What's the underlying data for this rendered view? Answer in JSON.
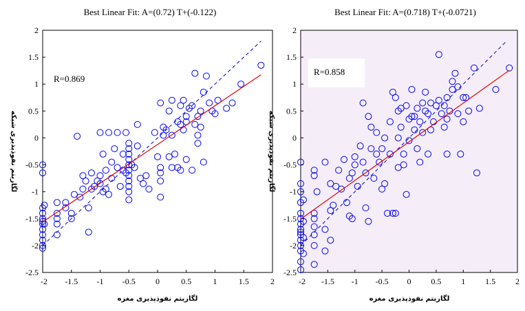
{
  "chart_data": [
    {
      "type": "scatter",
      "title": "Best Linear Fit: A=(0.72) T+(-0.122)",
      "r_label": "R=0.869",
      "xlabel": "لگاریتم نفوذپذیری مغزه",
      "ylabel": "لگاریتم نفوذپذیری شبکه",
      "xlim": [
        -2,
        2
      ],
      "ylim": [
        -2.5,
        2
      ],
      "x_ticks": [
        "-2",
        "-1.5",
        "-1",
        "-0.5",
        "0",
        "0.5",
        "1",
        "1.5",
        "2"
      ],
      "y_ticks": [
        "-2.5",
        "-2",
        "-1.5",
        "-1",
        "-0.5",
        "0",
        "0.5",
        "1",
        "1.5",
        "2"
      ],
      "background": "#ffffff",
      "marker_color": "#0000ff",
      "fit_color": "#e00000",
      "identity_color": "#0000cc",
      "fit_line": {
        "slope": 0.72,
        "intercept": -0.122
      },
      "identity_line": {
        "slope": 1,
        "intercept": 0
      },
      "points": [
        [
          -2,
          -0.5
        ],
        [
          -2,
          -0.65
        ],
        [
          -2,
          -1.3
        ],
        [
          -2,
          -1.4
        ],
        [
          -2,
          -1.5
        ],
        [
          -2,
          -1.55
        ],
        [
          -2,
          -1.6
        ],
        [
          -2,
          -1.7
        ],
        [
          -2,
          -1.8
        ],
        [
          -2,
          -1.9
        ],
        [
          -2,
          -2.0
        ],
        [
          -2,
          -2.05
        ],
        [
          -1.97,
          -1.6
        ],
        [
          -1.97,
          -1.25
        ],
        [
          -1.75,
          -1.2
        ],
        [
          -1.75,
          -1.4
        ],
        [
          -1.75,
          -1.5
        ],
        [
          -1.75,
          -1.6
        ],
        [
          -1.75,
          -1.8
        ],
        [
          -1.6,
          -1.2
        ],
        [
          -1.6,
          -1.3
        ],
        [
          -1.5,
          -1.4
        ],
        [
          -1.5,
          -1.5
        ],
        [
          -1.45,
          -1.05
        ],
        [
          -1.4,
          0.03
        ],
        [
          -1.35,
          -1.1
        ],
        [
          -1.3,
          -0.7
        ],
        [
          -1.3,
          -0.95
        ],
        [
          -1.25,
          -0.8
        ],
        [
          -1.2,
          -1.3
        ],
        [
          -1.2,
          -1.75
        ],
        [
          -1.15,
          -0.95
        ],
        [
          -1.15,
          -0.65
        ],
        [
          -1.1,
          -0.9
        ],
        [
          -1.05,
          -0.8
        ],
        [
          -1.0,
          0.1
        ],
        [
          -1.0,
          -0.7
        ],
        [
          -1.0,
          -0.85
        ],
        [
          -0.95,
          -1.0
        ],
        [
          -0.95,
          -0.3
        ],
        [
          -0.9,
          -0.95
        ],
        [
          -0.9,
          -0.6
        ],
        [
          -0.85,
          -1.05
        ],
        [
          -0.85,
          0.1
        ],
        [
          -0.8,
          -0.45
        ],
        [
          -0.8,
          -0.75
        ],
        [
          -0.75,
          -0.2
        ],
        [
          -0.7,
          0.1
        ],
        [
          -0.7,
          -0.55
        ],
        [
          -0.65,
          -0.9
        ],
        [
          -0.6,
          -0.3
        ],
        [
          -0.6,
          -0.6
        ],
        [
          -0.55,
          0.1
        ],
        [
          -0.55,
          -0.65
        ],
        [
          -0.5,
          -0.1
        ],
        [
          -0.5,
          -0.2
        ],
        [
          -0.5,
          -0.3
        ],
        [
          -0.5,
          -0.4
        ],
        [
          -0.5,
          -0.5
        ],
        [
          -0.5,
          -0.6
        ],
        [
          -0.5,
          -0.7
        ],
        [
          -0.5,
          -0.8
        ],
        [
          -0.5,
          -0.9
        ],
        [
          -0.5,
          -1.0
        ],
        [
          -0.5,
          -1.15
        ],
        [
          -0.45,
          -0.5
        ],
        [
          -0.4,
          -0.55
        ],
        [
          -0.35,
          0.25
        ],
        [
          -0.35,
          -0.15
        ],
        [
          -0.3,
          -0.75
        ],
        [
          -0.25,
          -0.85
        ],
        [
          -0.2,
          -0.7
        ],
        [
          -0.15,
          -0.95
        ],
        [
          -0.05,
          0.1
        ],
        [
          0.0,
          -0.35
        ],
        [
          0.05,
          0.65
        ],
        [
          0.05,
          -0.55
        ],
        [
          0.05,
          -0.65
        ],
        [
          0.05,
          -0.8
        ],
        [
          0.05,
          -1.1
        ],
        [
          0.1,
          0.2
        ],
        [
          0.1,
          0.05
        ],
        [
          0.15,
          0.15
        ],
        [
          0.2,
          0.5
        ],
        [
          0.2,
          -0.35
        ],
        [
          0.25,
          0.7
        ],
        [
          0.25,
          0.05
        ],
        [
          0.25,
          -0.55
        ],
        [
          0.3,
          -0.3
        ],
        [
          0.35,
          0.3
        ],
        [
          0.35,
          -0.55
        ],
        [
          0.4,
          0.6
        ],
        [
          0.4,
          0.25
        ],
        [
          0.4,
          -0.6
        ],
        [
          0.45,
          0.7
        ],
        [
          0.45,
          0.15
        ],
        [
          0.5,
          0.4
        ],
        [
          0.5,
          0.3
        ],
        [
          0.5,
          -0.4
        ],
        [
          0.55,
          0.55
        ],
        [
          0.6,
          0.6
        ],
        [
          0.6,
          -0.6
        ],
        [
          0.65,
          0.25
        ],
        [
          0.65,
          1.2
        ],
        [
          0.7,
          0.4
        ],
        [
          0.7,
          0.05
        ],
        [
          0.7,
          -0.1
        ],
        [
          0.75,
          0.5
        ],
        [
          0.75,
          0.2
        ],
        [
          0.8,
          0.85
        ],
        [
          0.8,
          -0.45
        ],
        [
          0.85,
          1.15
        ],
        [
          0.9,
          0.65
        ],
        [
          0.95,
          0.5
        ],
        [
          1.0,
          0.45
        ],
        [
          1.05,
          0.7
        ],
        [
          1.2,
          0.55
        ],
        [
          1.3,
          0.65
        ],
        [
          1.45,
          1.0
        ],
        [
          1.8,
          1.35
        ]
      ]
    },
    {
      "type": "scatter",
      "title": "Best Linear Fit: A=(0.718) T+(-0.0721)",
      "r_label": "R=0.858",
      "xlabel": "لگاریتم نفوذپذیری مغزه",
      "ylabel": "لگاریتم نفوذپذیری شبکه",
      "xlim": [
        -2,
        2
      ],
      "ylim": [
        -2.5,
        2
      ],
      "x_ticks": [
        "-2",
        "-1.5",
        "-1",
        "-0.5",
        "0",
        "0.5",
        "1",
        "1.5",
        "2"
      ],
      "y_ticks": [
        "-2.5",
        "-2",
        "-1.5",
        "-1",
        "-0.5",
        "0",
        "0.5",
        "1",
        "1.5",
        "2"
      ],
      "background": "#f5eef8",
      "marker_color": "#0000ff",
      "fit_color": "#e00000",
      "identity_color": "#0000cc",
      "fit_line": {
        "slope": 0.718,
        "intercept": -0.0721
      },
      "identity_line": {
        "slope": 1,
        "intercept": 0
      },
      "points": [
        [
          -2,
          -0.45
        ],
        [
          -2,
          -0.85
        ],
        [
          -2,
          -1.0
        ],
        [
          -2,
          -1.2
        ],
        [
          -2,
          -1.4
        ],
        [
          -2,
          -1.5
        ],
        [
          -2,
          -1.6
        ],
        [
          -2,
          -1.7
        ],
        [
          -2,
          -1.75
        ],
        [
          -2,
          -1.8
        ],
        [
          -2,
          -1.9
        ],
        [
          -2,
          -2.0
        ],
        [
          -2,
          -2.1
        ],
        [
          -2,
          -2.3
        ],
        [
          -2,
          -2.45
        ],
        [
          -1.95,
          -1.15
        ],
        [
          -1.95,
          -1.55
        ],
        [
          -1.95,
          -1.85
        ],
        [
          -1.95,
          -2.15
        ],
        [
          -1.75,
          -0.6
        ],
        [
          -1.75,
          -0.7
        ],
        [
          -1.75,
          -1.4
        ],
        [
          -1.75,
          -1.5
        ],
        [
          -1.75,
          -1.65
        ],
        [
          -1.75,
          -1.8
        ],
        [
          -1.75,
          -2.0
        ],
        [
          -1.75,
          -2.35
        ],
        [
          -1.7,
          -1.0
        ],
        [
          -1.55,
          -0.45
        ],
        [
          -1.55,
          -1.7
        ],
        [
          -1.55,
          -2.1
        ],
        [
          -1.45,
          -0.85
        ],
        [
          -1.45,
          -1.35
        ],
        [
          -1.45,
          -1.9
        ],
        [
          -1.4,
          -1.25
        ],
        [
          -1.35,
          -0.9
        ],
        [
          -1.3,
          -0.6
        ],
        [
          -1.25,
          -0.95
        ],
        [
          -1.2,
          -0.4
        ],
        [
          -1.15,
          -1.2
        ],
        [
          -1.1,
          -0.75
        ],
        [
          -1.1,
          -1.45
        ],
        [
          -1.05,
          -1.5
        ],
        [
          -1.05,
          -0.65
        ],
        [
          -1.0,
          -0.5
        ],
        [
          -1.0,
          -0.35
        ],
        [
          -0.95,
          -0.9
        ],
        [
          -0.9,
          -0.15
        ],
        [
          -0.85,
          0.65
        ],
        [
          -0.85,
          -0.45
        ],
        [
          -0.8,
          -0.65
        ],
        [
          -0.8,
          -1.3
        ],
        [
          -0.75,
          0.4
        ],
        [
          -0.75,
          -1.55
        ],
        [
          -0.7,
          0.2
        ],
        [
          -0.7,
          -0.2
        ],
        [
          -0.65,
          -0.75
        ],
        [
          -0.6,
          0.1
        ],
        [
          -0.6,
          -0.3
        ],
        [
          -0.55,
          -0.45
        ],
        [
          -0.5,
          -0.2
        ],
        [
          -0.5,
          -0.95
        ],
        [
          -0.45,
          0.0
        ],
        [
          -0.45,
          -0.85
        ],
        [
          -0.4,
          -1.4
        ],
        [
          -0.35,
          -0.3
        ],
        [
          -0.35,
          0.3
        ],
        [
          -0.3,
          -1.4
        ],
        [
          -0.3,
          0.85
        ],
        [
          -0.25,
          0.75
        ],
        [
          -0.25,
          -1.4
        ],
        [
          -0.2,
          0.5
        ],
        [
          -0.2,
          0.0
        ],
        [
          -0.2,
          -0.55
        ],
        [
          -0.15,
          0.55
        ],
        [
          -0.15,
          0.2
        ],
        [
          -0.1,
          -0.3
        ],
        [
          -0.1,
          -0.5
        ],
        [
          -0.05,
          0.6
        ],
        [
          -0.05,
          -1.05
        ],
        [
          0.0,
          0.35
        ],
        [
          0.0,
          -0.05
        ],
        [
          0.05,
          0.9
        ],
        [
          0.05,
          0.4
        ],
        [
          0.1,
          0.4
        ],
        [
          0.1,
          0.15
        ],
        [
          0.15,
          0.55
        ],
        [
          0.15,
          -0.2
        ],
        [
          0.2,
          0.3
        ],
        [
          0.2,
          -0.45
        ],
        [
          0.25,
          0.65
        ],
        [
          0.25,
          0.1
        ],
        [
          0.3,
          0.5
        ],
        [
          0.3,
          0.85
        ],
        [
          0.35,
          0.45
        ],
        [
          0.35,
          -0.3
        ],
        [
          0.4,
          0.65
        ],
        [
          0.4,
          0.15
        ],
        [
          0.45,
          0.3
        ],
        [
          0.5,
          0.6
        ],
        [
          0.55,
          1.55
        ],
        [
          0.55,
          0.7
        ],
        [
          0.6,
          0.45
        ],
        [
          0.65,
          0.6
        ],
        [
          0.65,
          0.2
        ],
        [
          0.7,
          0.75
        ],
        [
          0.7,
          0.35
        ],
        [
          0.7,
          -0.3
        ],
        [
          0.75,
          0.5
        ],
        [
          0.8,
          1.05
        ],
        [
          0.8,
          0.9
        ],
        [
          0.85,
          1.2
        ],
        [
          0.9,
          0.95
        ],
        [
          0.9,
          0.45
        ],
        [
          0.95,
          -0.3
        ],
        [
          1.0,
          0.75
        ],
        [
          1.0,
          0.3
        ],
        [
          1.05,
          0.75
        ],
        [
          1.1,
          0.5
        ],
        [
          1.2,
          1.3
        ],
        [
          1.25,
          -0.65
        ],
        [
          1.3,
          0.55
        ],
        [
          1.6,
          0.9
        ],
        [
          1.85,
          1.3
        ]
      ]
    }
  ]
}
